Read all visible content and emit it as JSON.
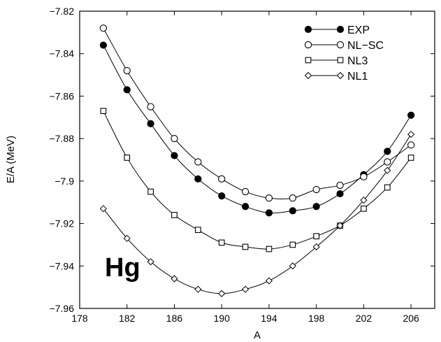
{
  "chart_data": {
    "type": "line",
    "xlabel": "A",
    "ylabel": "E/A (MeV)",
    "xlim": [
      178,
      208
    ],
    "ylim": [
      -7.96,
      -7.82
    ],
    "xticks": [
      178,
      182,
      186,
      190,
      194,
      198,
      202,
      206
    ],
    "yticks": [
      -7.82,
      -7.84,
      -7.86,
      -7.88,
      -7.9,
      -7.92,
      -7.94,
      -7.96
    ],
    "xtick_labels": [
      "178",
      "182",
      "186",
      "190",
      "194",
      "198",
      "202",
      "206"
    ],
    "ytick_labels": [
      "−7.82",
      "−7.84",
      "−7.86",
      "−7.88",
      "−7.9",
      "−7.92",
      "−7.94",
      "−7.96"
    ],
    "annotation": "Hg",
    "legend_position": "top-right",
    "series": [
      {
        "name": "EXP",
        "marker": "filled-circle",
        "x": [
          180,
          182,
          184,
          186,
          188,
          190,
          192,
          194,
          196,
          198,
          200,
          202,
          204,
          206
        ],
        "y": [
          -7.836,
          -7.857,
          -7.873,
          -7.888,
          -7.899,
          -7.907,
          -7.912,
          -7.915,
          -7.914,
          -7.912,
          -7.906,
          -7.897,
          -7.886,
          -7.869
        ]
      },
      {
        "name": "NL−SC",
        "marker": "open-circle",
        "x": [
          180,
          182,
          184,
          186,
          188,
          190,
          192,
          194,
          196,
          198,
          200,
          202,
          204,
          206
        ],
        "y": [
          -7.828,
          -7.848,
          -7.865,
          -7.88,
          -7.891,
          -7.899,
          -7.905,
          -7.908,
          -7.908,
          -7.904,
          -7.902,
          -7.898,
          -7.891,
          -7.883
        ]
      },
      {
        "name": "NL3",
        "marker": "open-square",
        "x": [
          180,
          182,
          184,
          186,
          188,
          190,
          192,
          194,
          196,
          198,
          200,
          202,
          204,
          206
        ],
        "y": [
          -7.867,
          -7.889,
          -7.905,
          -7.916,
          -7.923,
          -7.929,
          -7.931,
          -7.932,
          -7.93,
          -7.926,
          -7.921,
          -7.913,
          -7.903,
          -7.889
        ]
      },
      {
        "name": "NL1",
        "marker": "open-diamond",
        "x": [
          180,
          182,
          184,
          186,
          188,
          190,
          192,
          194,
          196,
          198,
          200,
          202,
          204,
          206
        ],
        "y": [
          -7.913,
          -7.927,
          -7.938,
          -7.946,
          -7.951,
          -7.953,
          -7.951,
          -7.947,
          -7.94,
          -7.931,
          -7.921,
          -7.909,
          -7.895,
          -7.878
        ]
      }
    ]
  }
}
